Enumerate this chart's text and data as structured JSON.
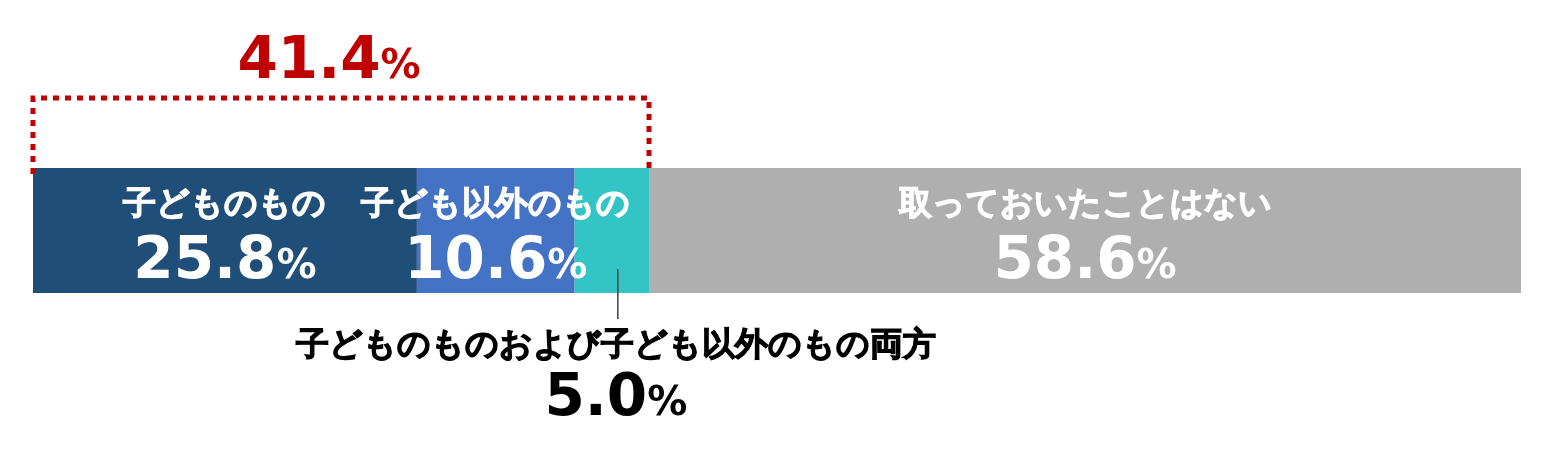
{
  "chart_data": {
    "type": "bar",
    "orientation": "horizontal",
    "stacked": true,
    "categories": [
      null
    ],
    "series": [
      {
        "name": "子どものもの",
        "color": "#1f4e79",
        "values": [
          25.8
        ],
        "value_labels": [
          "25.8%"
        ]
      },
      {
        "name": "子ども以外のもの",
        "color": "#4472c4",
        "values": [
          10.6
        ],
        "value_labels": [
          "10.6%"
        ]
      },
      {
        "name": "子どものものおよび子ども以外のもの両方",
        "color": "#33c5c5",
        "values": [
          5.0
        ],
        "value_labels": [
          "5.0%"
        ]
      },
      {
        "name": "取っておいたことはない",
        "color": "#afafaf",
        "values": [
          58.6
        ],
        "value_labels": [
          "58.6%"
        ]
      }
    ],
    "annotations": [
      "41.4%"
    ]
  }
}
